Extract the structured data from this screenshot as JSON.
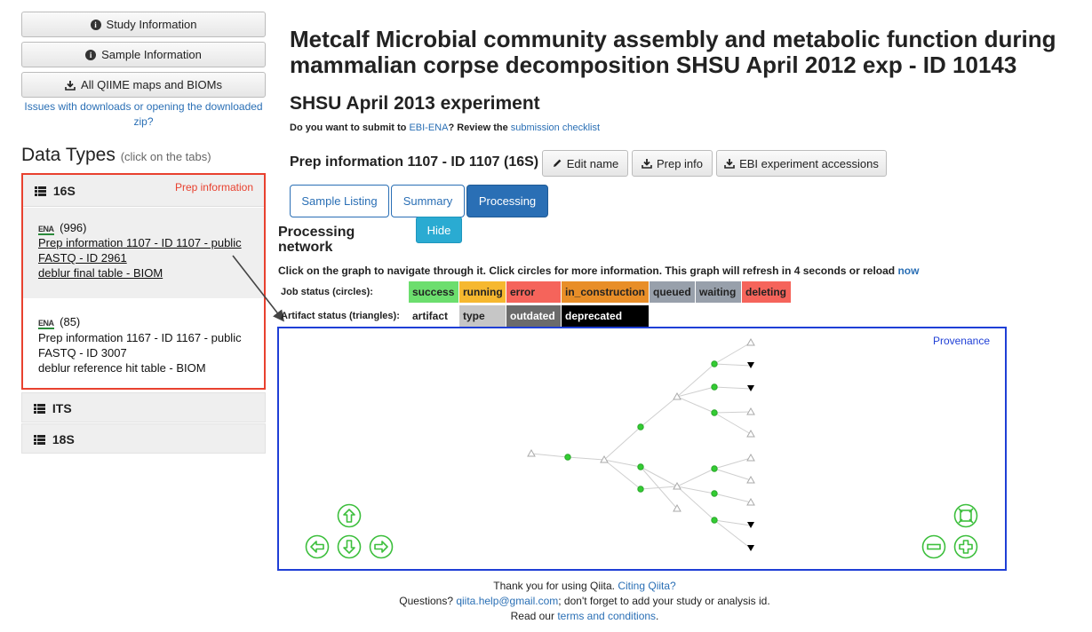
{
  "sidebar": {
    "study_info_label": "Study Information",
    "sample_info_label": "Sample Information",
    "qiime_label": "All QIIME maps and BIOMs",
    "issues_link": "Issues with downloads or opening the downloaded zip?",
    "data_types_title": "Data Types",
    "data_types_hint": "(click on the tabs)",
    "datatypes": [
      {
        "label": "16S",
        "badge": "Prep information",
        "preps": [
          {
            "ena": "ENA",
            "count": "(996)",
            "prep": "Prep information 1107 - ID 1107 - public",
            "fastq": "FASTQ - ID 2961",
            "biom": "deblur final table - BIOM"
          },
          {
            "ena": "ENA",
            "count": "(85)",
            "prep": "Prep information 1167 - ID 1167 - public",
            "fastq": "FASTQ - ID 3007",
            "biom": "deblur reference hit table - BIOM"
          }
        ]
      },
      {
        "label": "ITS"
      },
      {
        "label": "18S"
      }
    ]
  },
  "main": {
    "title": "Metcalf Microbial community assembly and metabolic function during mammalian corpse decomposition SHSU April 2012 exp - ID 10143",
    "subtitle": "SHSU April 2013 experiment",
    "submit_prefix": "Do you want to submit to ",
    "submit_link": "EBI-ENA",
    "submit_mid": "? Review the ",
    "submit_checklist": "submission checklist",
    "prep_title": "Prep information 1107 - ID 1107 (16S)",
    "edit_name_label": "Edit name",
    "prep_info_label": "Prep info",
    "ebi_label": "EBI experiment accessions",
    "tabs": [
      {
        "label": "Sample Listing"
      },
      {
        "label": "Summary"
      },
      {
        "label": "Processing"
      }
    ],
    "processing_label": "Processing network",
    "hide_label": "Hide",
    "graph_note": "Click on the graph to navigate through it. Click circles for more information. This graph will refresh in 4 seconds or reload ",
    "graph_note_link": "now",
    "job_status_label": "Job status (circles):",
    "job_statuses": [
      {
        "label": "success",
        "color": "#6cde6e"
      },
      {
        "label": "running",
        "color": "#f6b82f"
      },
      {
        "label": "error",
        "color": "#f5645b"
      },
      {
        "label": "in_construction",
        "color": "#e88e28"
      },
      {
        "label": "queued",
        "color": "#98a0ab"
      },
      {
        "label": "waiting",
        "color": "#98a0ab"
      },
      {
        "label": "deleting",
        "color": "#f5645b"
      }
    ],
    "artifact_status_label": "Artifact status (triangles):",
    "artifact_statuses": [
      {
        "label": "artifact",
        "color": "#ffffff",
        "text": "#222222"
      },
      {
        "label": "type",
        "color": "#c6c6c6",
        "text": "#222222"
      },
      {
        "label": "outdated",
        "color": "#6b6b6b",
        "text": "#ffffff"
      },
      {
        "label": "deprecated",
        "color": "#000000",
        "text": "#ffffff"
      }
    ],
    "provenance_label": "Provenance"
  },
  "footer": {
    "line1_prefix": "Thank you for using Qiita. ",
    "line1_link": "Citing Qiita?",
    "line2_link": "qiita.help@gmail.com",
    "line2_prefix": "Questions? ",
    "line2_suffix": "; don't forget to add your study or analysis id.",
    "line3_prefix": "Read our ",
    "line3_link": "terms and conditions",
    "line3_suffix": "."
  },
  "colors": {
    "link": "#2a6fb5",
    "accent_red": "#e8412f",
    "graph_border": "#1f3fd6",
    "nav_green": "#3dbf3d",
    "node_green": "#33cc33"
  },
  "icons": [
    "info-icon",
    "download-icon",
    "pencil-icon",
    "list-icon",
    "arrow-up-icon",
    "arrow-left-icon",
    "arrow-down-icon",
    "arrow-right-icon",
    "fit-icon",
    "zoom-out-icon",
    "zoom-in-icon"
  ]
}
